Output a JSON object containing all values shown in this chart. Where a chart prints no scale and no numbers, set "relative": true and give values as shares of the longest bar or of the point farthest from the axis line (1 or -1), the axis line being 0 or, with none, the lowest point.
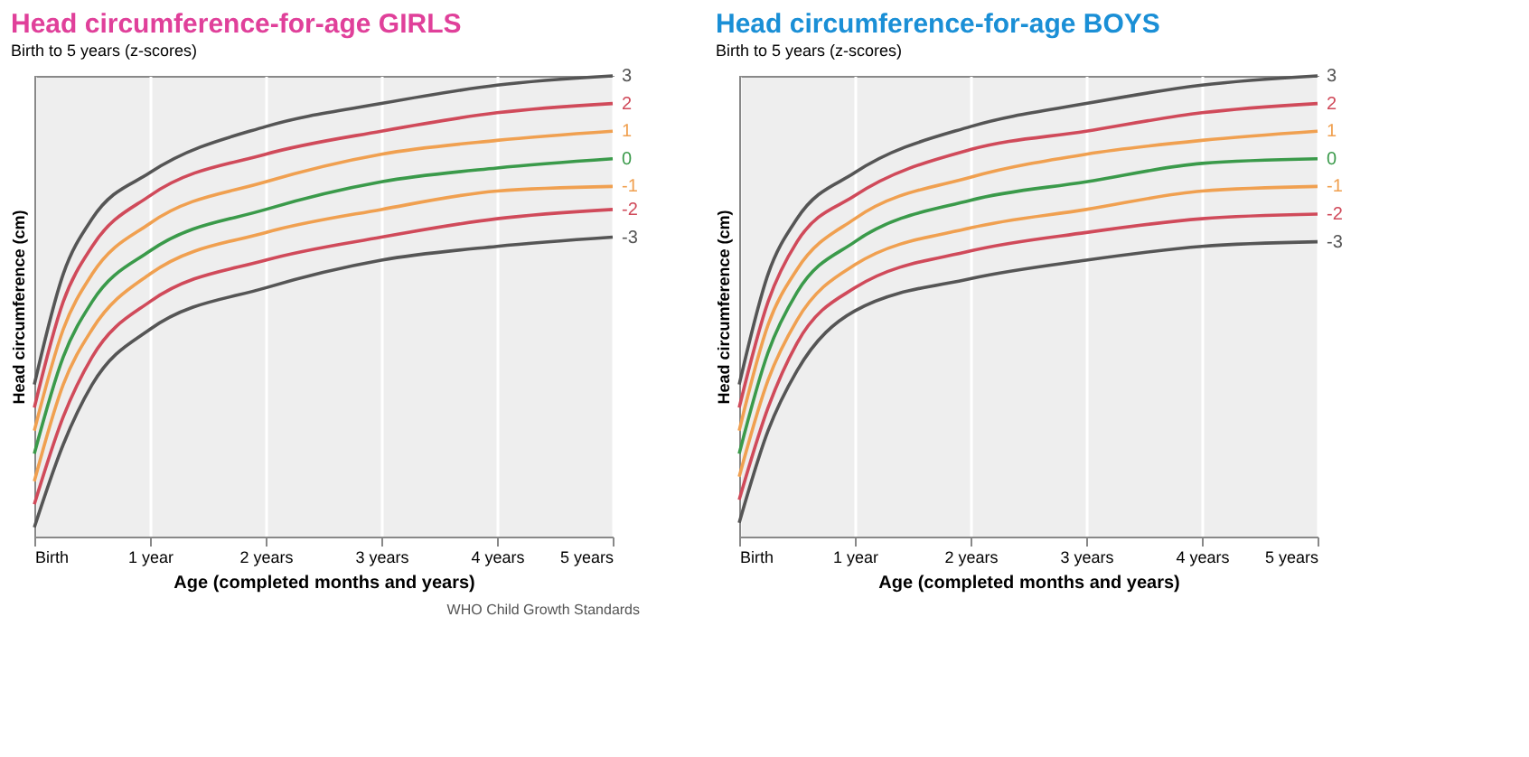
{
  "chart_data": [
    {
      "type": "line",
      "title": "Head circumference-for-age  GIRLS",
      "subtitle": "Birth to 5 years (z-scores)",
      "xlabel": "Age (completed months and years)",
      "ylabel": "Head circumference (cm)",
      "relative": true,
      "grid": "x",
      "legend": false,
      "marker": "none",
      "line_style": "solid",
      "x": [
        0,
        0.25,
        0.5,
        1,
        2,
        3,
        4,
        5
      ],
      "xlim": [
        0,
        5
      ],
      "xticks": [
        {
          "value": 0,
          "label": "Birth"
        },
        {
          "value": 1,
          "label": "1 year"
        },
        {
          "value": 2,
          "label": "2 years"
        },
        {
          "value": 3,
          "label": "3 years"
        },
        {
          "value": 4,
          "label": "4 years"
        },
        {
          "value": 5,
          "label": "5 years"
        }
      ],
      "series": [
        {
          "name": "3",
          "color": "#555555",
          "values": [
            0.33,
            0.57,
            0.69,
            0.79,
            0.89,
            0.94,
            0.98,
            1.0
          ]
        },
        {
          "name": "2",
          "color": "#d04a5a",
          "values": [
            0.28,
            0.51,
            0.63,
            0.74,
            0.83,
            0.88,
            0.92,
            0.94
          ]
        },
        {
          "name": "1",
          "color": "#f0a050",
          "values": [
            0.23,
            0.45,
            0.57,
            0.68,
            0.77,
            0.83,
            0.86,
            0.88
          ]
        },
        {
          "name": "0",
          "color": "#3a9a4a",
          "values": [
            0.18,
            0.39,
            0.51,
            0.62,
            0.71,
            0.77,
            0.8,
            0.82
          ]
        },
        {
          "name": "-1",
          "color": "#f0a050",
          "values": [
            0.12,
            0.33,
            0.45,
            0.57,
            0.66,
            0.71,
            0.75,
            0.76
          ]
        },
        {
          "name": "-2",
          "color": "#d04a5a",
          "values": [
            0.07,
            0.26,
            0.39,
            0.51,
            0.6,
            0.65,
            0.69,
            0.71
          ]
        },
        {
          "name": "-3",
          "color": "#555555",
          "values": [
            0.02,
            0.2,
            0.33,
            0.45,
            0.54,
            0.6,
            0.63,
            0.65
          ]
        }
      ],
      "annotations": [
        "WHO Child Growth Standards"
      ]
    },
    {
      "type": "line",
      "title": "Head circumference-for-age  BOYS",
      "subtitle": "Birth to 5 years (z-scores)",
      "xlabel": "Age (completed months and years)",
      "ylabel": "Head circumference (cm)",
      "relative": true,
      "grid": "x",
      "legend": false,
      "marker": "none",
      "line_style": "solid",
      "x": [
        0,
        0.25,
        0.5,
        1,
        2,
        3,
        4,
        5
      ],
      "xlim": [
        0,
        5
      ],
      "xticks": [
        {
          "value": 0,
          "label": "Birth"
        },
        {
          "value": 1,
          "label": "1 year"
        },
        {
          "value": 2,
          "label": "2 years"
        },
        {
          "value": 3,
          "label": "3 years"
        },
        {
          "value": 4,
          "label": "4 years"
        },
        {
          "value": 5,
          "label": "5 years"
        }
      ],
      "series": [
        {
          "name": "3",
          "color": "#555555",
          "values": [
            0.33,
            0.57,
            0.69,
            0.79,
            0.89,
            0.94,
            0.98,
            1.0
          ]
        },
        {
          "name": "2",
          "color": "#d04a5a",
          "values": [
            0.28,
            0.51,
            0.64,
            0.74,
            0.84,
            0.88,
            0.92,
            0.94
          ]
        },
        {
          "name": "1",
          "color": "#f0a050",
          "values": [
            0.23,
            0.46,
            0.58,
            0.69,
            0.78,
            0.83,
            0.86,
            0.88
          ]
        },
        {
          "name": "0",
          "color": "#3a9a4a",
          "values": [
            0.18,
            0.4,
            0.53,
            0.64,
            0.73,
            0.77,
            0.81,
            0.82
          ]
        },
        {
          "name": "-1",
          "color": "#f0a050",
          "values": [
            0.13,
            0.34,
            0.47,
            0.59,
            0.67,
            0.71,
            0.75,
            0.76
          ]
        },
        {
          "name": "-2",
          "color": "#d04a5a",
          "values": [
            0.08,
            0.28,
            0.42,
            0.54,
            0.62,
            0.66,
            0.69,
            0.7
          ]
        },
        {
          "name": "-3",
          "color": "#555555",
          "values": [
            0.03,
            0.23,
            0.36,
            0.49,
            0.56,
            0.6,
            0.63,
            0.64
          ]
        }
      ]
    }
  ]
}
